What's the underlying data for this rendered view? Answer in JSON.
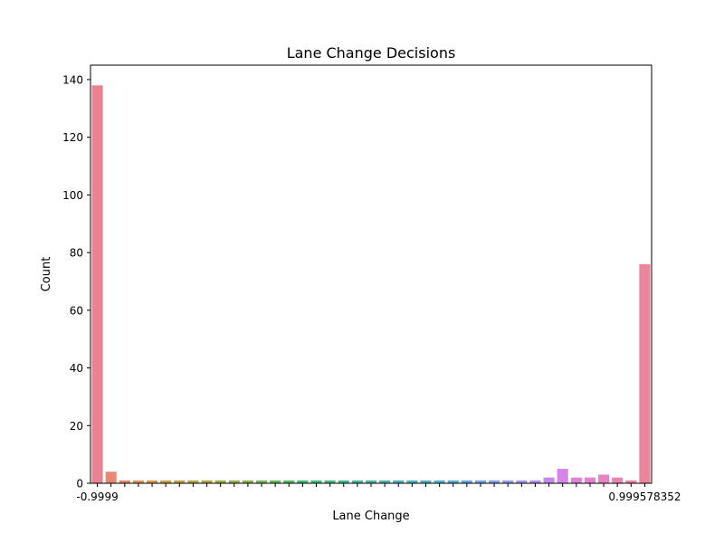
{
  "chart_data": {
    "type": "bar",
    "title": "Lane Change Decisions",
    "xlabel": "Lane Change",
    "ylabel": "Count",
    "ylim": [
      0,
      145
    ],
    "yticks": [
      0,
      20,
      40,
      60,
      80,
      100,
      120,
      140
    ],
    "grid": false,
    "legend": "none",
    "first_category_label": "-0.9999",
    "last_category_label": "0.999578352",
    "values": [
      138,
      4,
      1,
      1,
      1,
      1,
      1,
      1,
      1,
      1,
      1,
      1,
      1,
      1,
      1,
      1,
      1,
      1,
      1,
      1,
      1,
      1,
      1,
      1,
      1,
      1,
      1,
      1,
      1,
      1,
      1,
      1,
      1,
      2,
      5,
      2,
      2,
      3,
      2,
      1,
      76
    ],
    "colors": [
      "#ea8293",
      "#e88874",
      "#e08a62",
      "#d99456",
      "#d19a47",
      "#c69e4d",
      "#bea24a",
      "#b4a548",
      "#a9a846",
      "#9eab48",
      "#93ae4c",
      "#86b152",
      "#77b456",
      "#66b65b",
      "#53b962",
      "#45ba6c",
      "#45b978",
      "#47b883",
      "#48b68e",
      "#4ab598",
      "#4bb4a0",
      "#4cb3a8",
      "#4db2b0",
      "#4eb1b8",
      "#50b0c0",
      "#53aec9",
      "#58abd3",
      "#63a8dc",
      "#72a3e2",
      "#829fe8",
      "#939aec",
      "#a395ef",
      "#b48ff0",
      "#c489ec",
      "#d684e7",
      "#e27fdd",
      "#e780d0",
      "#e982c3",
      "#ea83b6",
      "#ea84a8",
      "#ea859b"
    ]
  }
}
